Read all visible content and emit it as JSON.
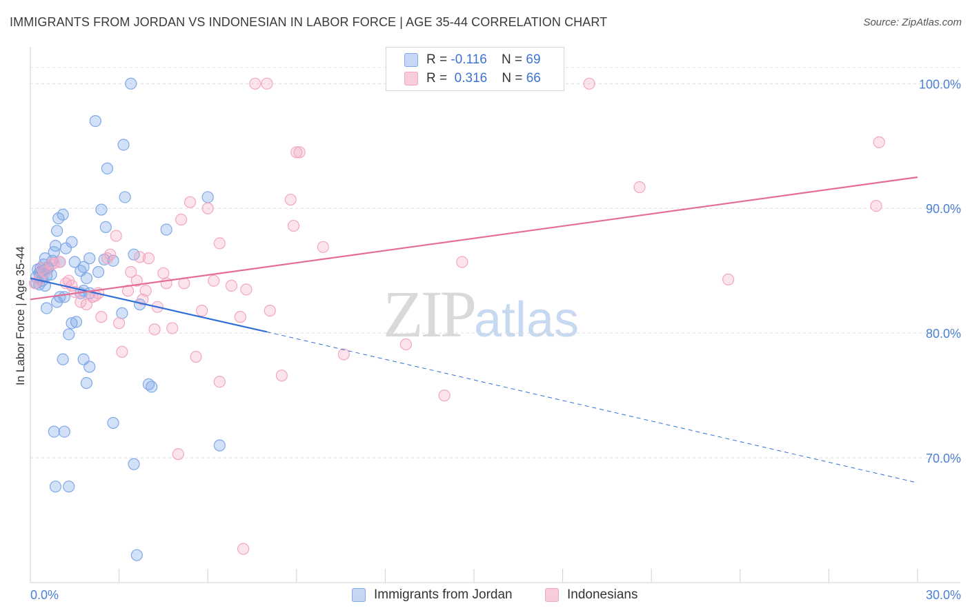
{
  "title": "IMMIGRANTS FROM JORDAN VS INDONESIAN IN LABOR FORCE | AGE 35-44 CORRELATION CHART",
  "source": "Source: ZipAtlas.com",
  "watermark": {
    "zip": "ZIP",
    "atlas": "atlas"
  },
  "legend": {
    "series1": {
      "r_label": "R = ",
      "r_value": "-0.116",
      "n_label": "N = ",
      "n_value": "69"
    },
    "series2": {
      "r_label": "R = ",
      "r_value": " 0.316",
      "n_label": "N = ",
      "n_value": "66"
    }
  },
  "colors": {
    "jordan": "#7fa8e8",
    "jordan_line": "#2e6fd6",
    "indonesian": "#f2a6bf",
    "indonesian_line": "#e56d95",
    "tick": "#4a7fd4"
  },
  "chart_data": {
    "type": "scatter",
    "xlabel": "",
    "ylabel": "In Labor Force | Age 35-44",
    "xlim": [
      0,
      30
    ],
    "ylim": [
      60,
      103.5
    ],
    "x_tick_labels": [
      "0.0%",
      "30.0%"
    ],
    "y_ticks": [
      {
        "value": 70,
        "label": "70.0%"
      },
      {
        "value": 80,
        "label": "80.0%"
      },
      {
        "value": 90,
        "label": "90.0%"
      },
      {
        "value": 100,
        "label": "100.0%"
      }
    ],
    "series": [
      {
        "name": "Immigrants from Jordan",
        "trend": {
          "x0": 0,
          "y0": 84.4,
          "x1": 8.0,
          "y1": 80.1,
          "dashed_to_x": 30,
          "dashed_to_y": 68.0
        },
        "points": [
          [
            0.2,
            84.5
          ],
          [
            0.3,
            84.8
          ],
          [
            0.35,
            85.2
          ],
          [
            0.4,
            84.2
          ],
          [
            0.45,
            85.5
          ],
          [
            0.5,
            86.0
          ],
          [
            0.55,
            84.6
          ],
          [
            0.6,
            85.3
          ],
          [
            0.25,
            85.1
          ],
          [
            0.3,
            83.9
          ],
          [
            0.5,
            83.8
          ],
          [
            0.7,
            84.7
          ],
          [
            0.75,
            85.8
          ],
          [
            0.8,
            86.5
          ],
          [
            0.85,
            87.0
          ],
          [
            0.9,
            88.2
          ],
          [
            0.95,
            89.2
          ],
          [
            1.1,
            89.5
          ],
          [
            1.0,
            85.7
          ],
          [
            1.2,
            86.8
          ],
          [
            1.4,
            87.3
          ],
          [
            1.5,
            85.7
          ],
          [
            1.7,
            85.0
          ],
          [
            1.8,
            85.3
          ],
          [
            1.9,
            84.4
          ],
          [
            2.0,
            86.0
          ],
          [
            2.3,
            84.9
          ],
          [
            2.5,
            85.9
          ],
          [
            1.0,
            82.9
          ],
          [
            1.15,
            82.9
          ],
          [
            0.9,
            82.5
          ],
          [
            0.55,
            82.0
          ],
          [
            1.4,
            80.8
          ],
          [
            1.55,
            80.9
          ],
          [
            1.3,
            79.9
          ],
          [
            1.8,
            77.9
          ],
          [
            2.0,
            77.3
          ],
          [
            1.9,
            76.0
          ],
          [
            1.1,
            77.9
          ],
          [
            0.8,
            72.1
          ],
          [
            1.15,
            72.1
          ],
          [
            2.8,
            72.8
          ],
          [
            0.85,
            67.7
          ],
          [
            1.3,
            67.7
          ],
          [
            3.5,
            69.5
          ],
          [
            4.0,
            75.9
          ],
          [
            4.1,
            75.7
          ],
          [
            6.4,
            71.0
          ],
          [
            3.6,
            62.2
          ],
          [
            2.2,
            97.0
          ],
          [
            3.15,
            95.1
          ],
          [
            2.6,
            93.2
          ],
          [
            3.4,
            100.0
          ],
          [
            3.2,
            90.9
          ],
          [
            2.4,
            89.9
          ],
          [
            2.55,
            88.5
          ],
          [
            4.6,
            88.3
          ],
          [
            6.0,
            90.9
          ],
          [
            3.5,
            86.3
          ],
          [
            2.8,
            85.8
          ],
          [
            3.1,
            81.6
          ],
          [
            3.7,
            82.3
          ],
          [
            1.7,
            83.2
          ],
          [
            1.8,
            83.4
          ],
          [
            2.0,
            83.2
          ],
          [
            0.6,
            85.2
          ],
          [
            0.4,
            84.5
          ],
          [
            0.2,
            84.0
          ],
          [
            0.35,
            84.9
          ]
        ]
      },
      {
        "name": "Indonesians",
        "trend": {
          "x0": 0,
          "y0": 82.7,
          "x1": 30,
          "y1": 92.5
        },
        "points": [
          [
            0.15,
            84.0
          ],
          [
            0.3,
            84.3
          ],
          [
            0.5,
            84.9
          ],
          [
            0.7,
            85.5
          ],
          [
            1.0,
            85.7
          ],
          [
            1.2,
            84.0
          ],
          [
            1.4,
            83.8
          ],
          [
            1.5,
            83.3
          ],
          [
            1.7,
            82.5
          ],
          [
            1.9,
            82.3
          ],
          [
            2.1,
            82.9
          ],
          [
            2.3,
            83.2
          ],
          [
            2.4,
            81.3
          ],
          [
            2.6,
            86.0
          ],
          [
            2.7,
            86.3
          ],
          [
            2.9,
            87.8
          ],
          [
            3.0,
            80.8
          ],
          [
            3.1,
            78.5
          ],
          [
            3.3,
            83.4
          ],
          [
            3.4,
            84.9
          ],
          [
            3.6,
            84.2
          ],
          [
            3.7,
            86.1
          ],
          [
            3.8,
            82.7
          ],
          [
            3.9,
            83.4
          ],
          [
            4.0,
            86.0
          ],
          [
            4.2,
            80.3
          ],
          [
            4.3,
            82.1
          ],
          [
            4.5,
            84.8
          ],
          [
            4.6,
            84.0
          ],
          [
            4.8,
            80.4
          ],
          [
            5.0,
            70.3
          ],
          [
            5.1,
            89.1
          ],
          [
            5.2,
            84.0
          ],
          [
            5.4,
            90.5
          ],
          [
            5.6,
            78.1
          ],
          [
            5.8,
            81.8
          ],
          [
            6.0,
            90.0
          ],
          [
            6.2,
            84.2
          ],
          [
            6.4,
            87.2
          ],
          [
            6.4,
            76.1
          ],
          [
            6.8,
            83.8
          ],
          [
            7.1,
            81.3
          ],
          [
            7.3,
            83.5
          ],
          [
            7.6,
            100.0
          ],
          [
            8.0,
            100.0
          ],
          [
            8.1,
            81.8
          ],
          [
            8.5,
            76.6
          ],
          [
            8.8,
            90.7
          ],
          [
            8.9,
            88.6
          ],
          [
            9.0,
            94.5
          ],
          [
            9.1,
            94.5
          ],
          [
            9.9,
            86.9
          ],
          [
            10.6,
            78.3
          ],
          [
            12.7,
            79.1
          ],
          [
            14.0,
            75.0
          ],
          [
            14.6,
            85.7
          ],
          [
            18.9,
            100.0
          ],
          [
            20.6,
            91.7
          ],
          [
            23.6,
            84.3
          ],
          [
            28.7,
            95.3
          ],
          [
            28.6,
            90.2
          ],
          [
            7.2,
            62.7
          ],
          [
            0.4,
            85.2
          ],
          [
            0.8,
            85.6
          ],
          [
            1.3,
            84.2
          ],
          [
            2.2,
            83.0
          ]
        ]
      }
    ]
  },
  "bottom_legend": {
    "jordan": "Immigrants from Jordan",
    "indonesian": "Indonesians"
  }
}
